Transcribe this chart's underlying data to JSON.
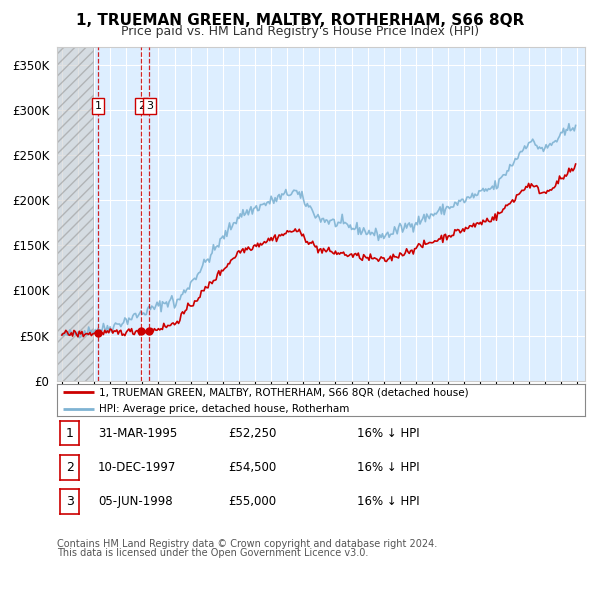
{
  "title": "1, TRUEMAN GREEN, MALTBY, ROTHERHAM, S66 8QR",
  "subtitle": "Price paid vs. HM Land Registry's House Price Index (HPI)",
  "ytick_vals": [
    0,
    50000,
    100000,
    150000,
    200000,
    250000,
    300000,
    350000
  ],
  "ylim": [
    0,
    370000
  ],
  "xlim_start": 1992.7,
  "xlim_end": 2025.5,
  "sales": [
    {
      "label": "1",
      "date_num": 1995.25,
      "price": 52250
    },
    {
      "label": "2",
      "date_num": 1997.94,
      "price": 54500
    },
    {
      "label": "3",
      "date_num": 1998.43,
      "price": 55000
    }
  ],
  "table_rows": [
    {
      "num": "1",
      "date": "31-MAR-1995",
      "price": "£52,250",
      "hpi": "16% ↓ HPI"
    },
    {
      "num": "2",
      "date": "10-DEC-1997",
      "price": "£54,500",
      "hpi": "16% ↓ HPI"
    },
    {
      "num": "3",
      "date": "05-JUN-1998",
      "price": "£55,000",
      "hpi": "16% ↓ HPI"
    }
  ],
  "legend_line1": "1, TRUEMAN GREEN, MALTBY, ROTHERHAM, S66 8QR (detached house)",
  "legend_line2": "HPI: Average price, detached house, Rotherham",
  "footer1": "Contains HM Land Registry data © Crown copyright and database right 2024.",
  "footer2": "This data is licensed under the Open Government Licence v3.0.",
  "red_color": "#cc0000",
  "blue_color": "#7fb3d3",
  "bg_chart": "#ddeeff",
  "grid_color": "#ffffff",
  "hatch_end": 1994.92
}
